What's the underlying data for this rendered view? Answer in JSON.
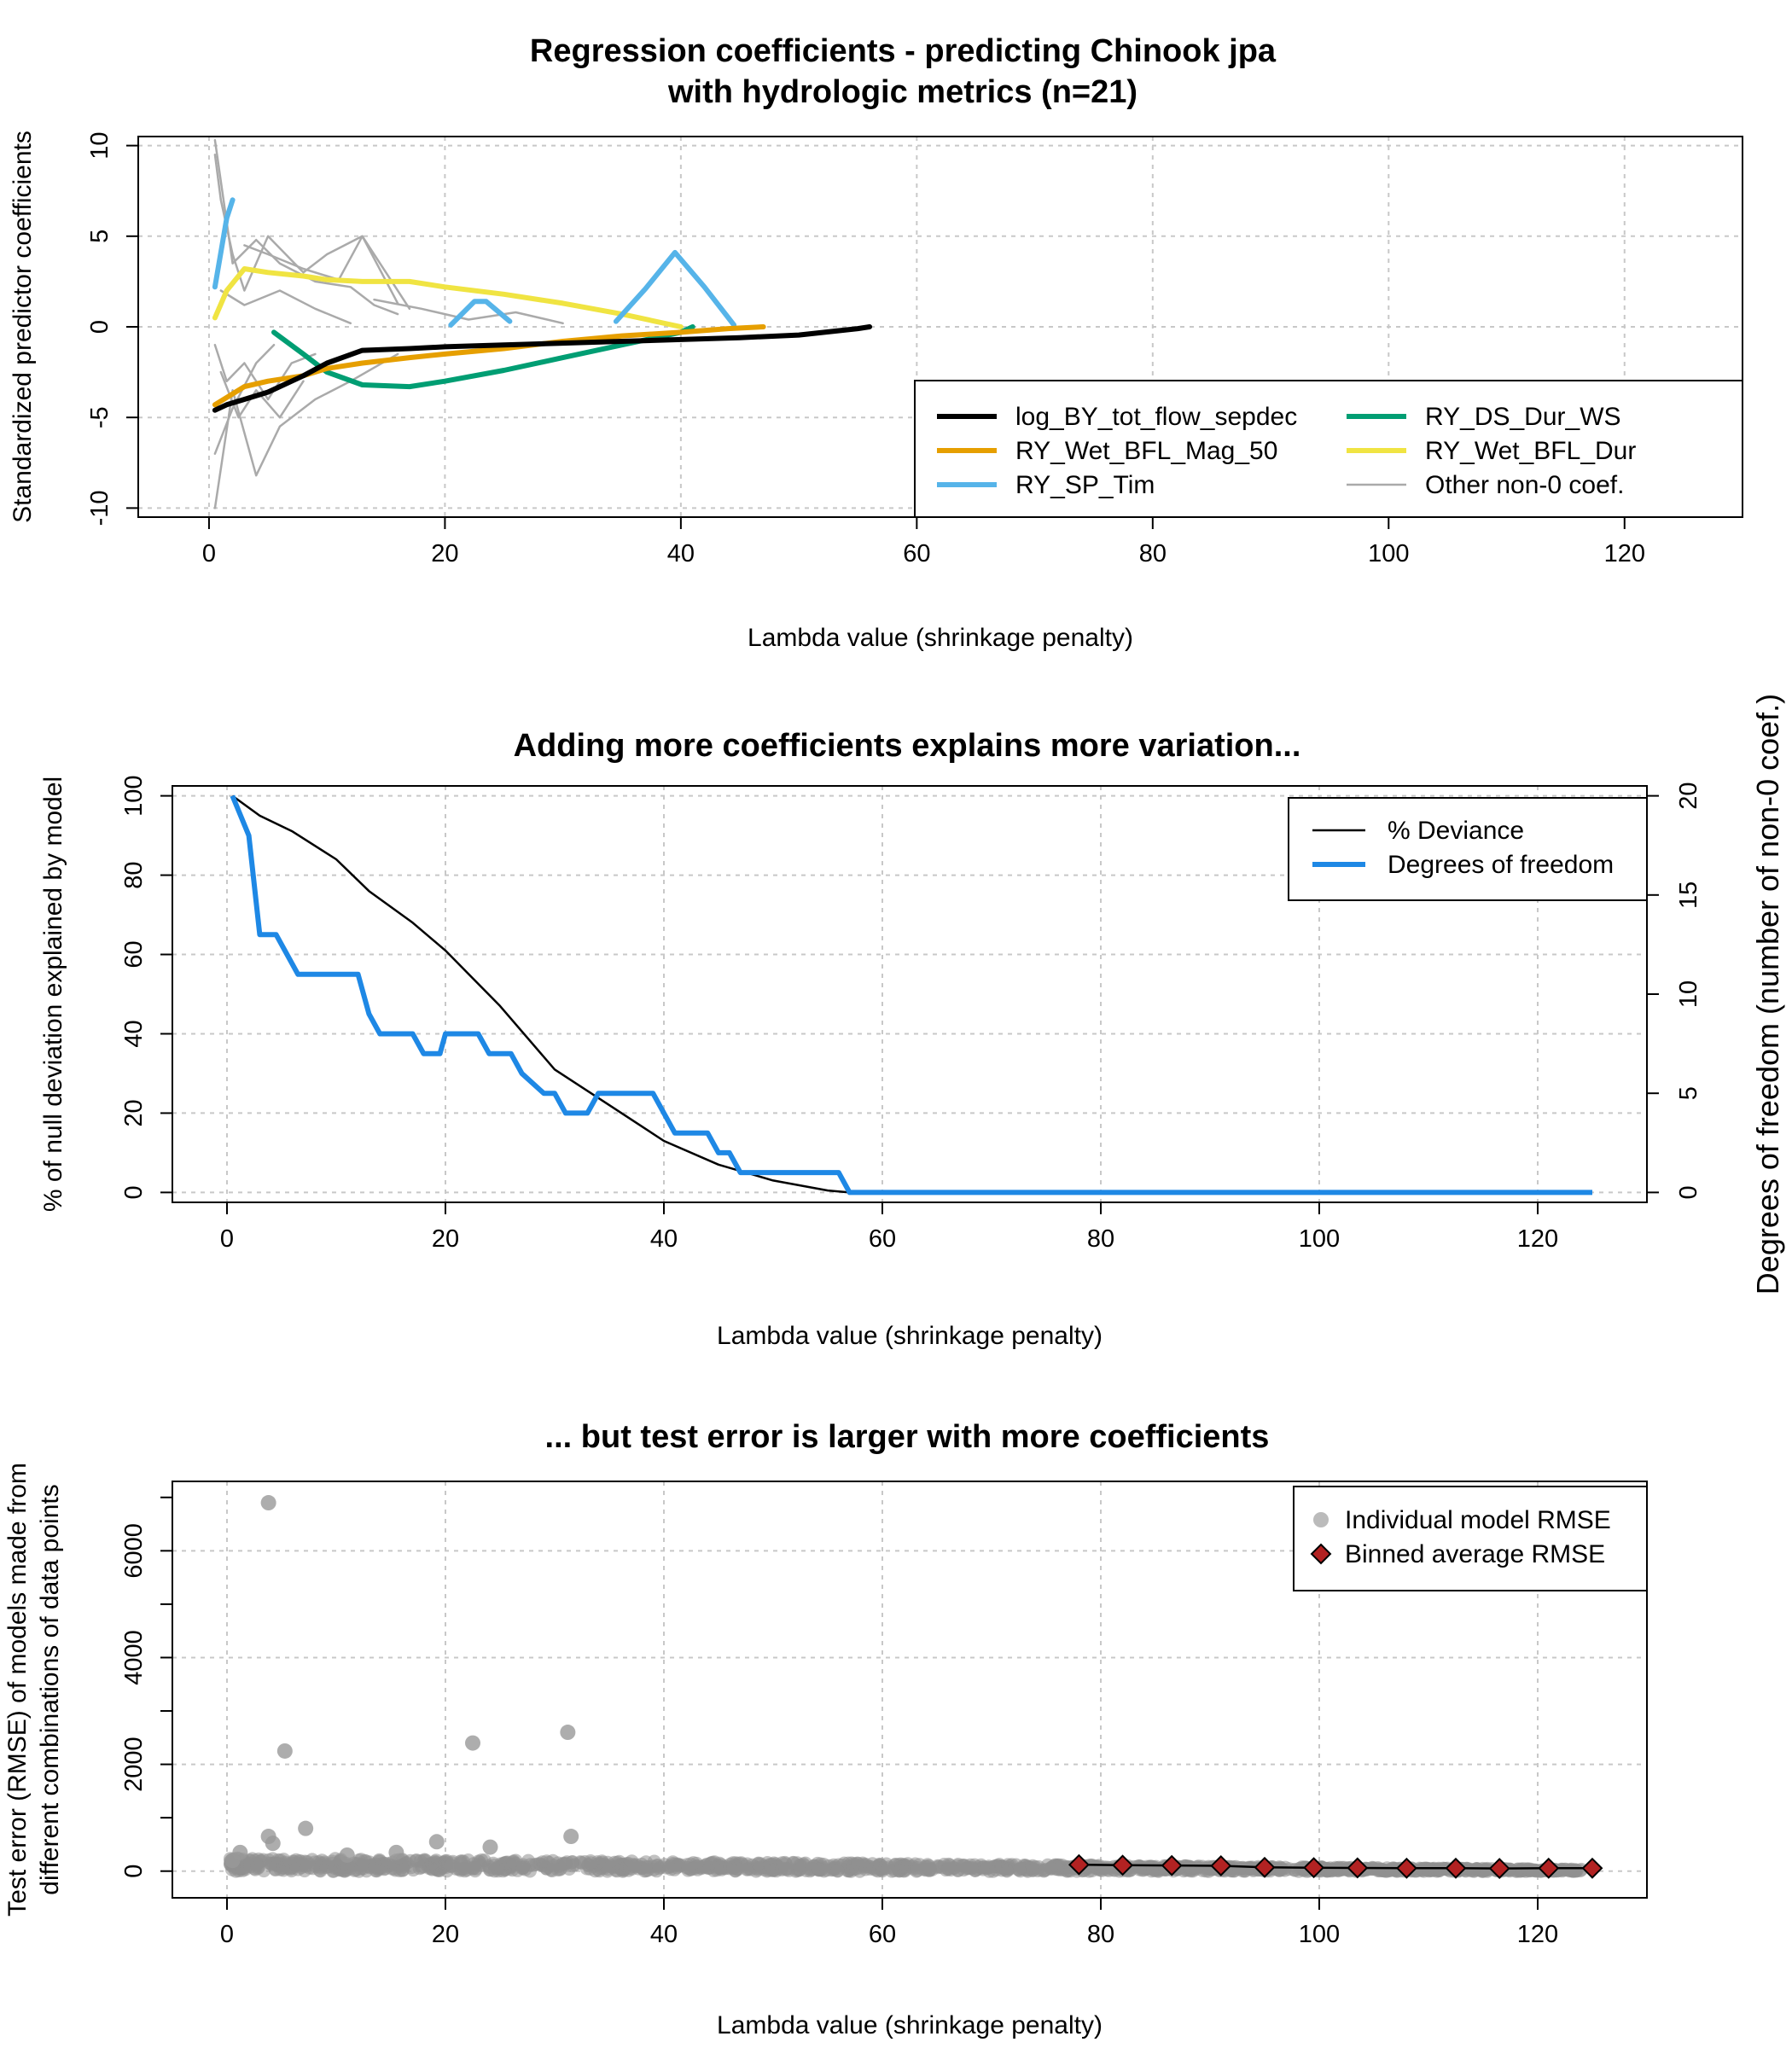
{
  "chart_data": [
    {
      "type": "line",
      "title": "Regression coefficients - predicting Chinook jpa",
      "subtitle": "with hydrologic metrics (n=21)",
      "xlabel": "Lambda value (shrinkage penalty)",
      "ylabel": "Standardized predictor coefficients",
      "xlim": [
        -6,
        130
      ],
      "ylim": [
        -10.5,
        10.5
      ],
      "xticks": [
        0,
        20,
        40,
        60,
        80,
        100,
        120
      ],
      "yticks": [
        -10,
        -5,
        0,
        5,
        10
      ],
      "grid": true,
      "legend_position": "right",
      "series": [
        {
          "name": "log_BY_tot_flow_sepdec",
          "color": "#000000",
          "x": [
            0.5,
            1.5,
            3,
            5,
            8,
            10,
            13,
            17,
            20,
            25,
            30,
            35,
            40,
            45,
            50,
            55,
            56
          ],
          "y": [
            -4.6,
            -4.3,
            -4.0,
            -3.6,
            -2.7,
            -2.0,
            -1.3,
            -1.2,
            -1.1,
            -1.0,
            -0.9,
            -0.8,
            -0.7,
            -0.6,
            -0.45,
            -0.1,
            0
          ]
        },
        {
          "name": "RY_Wet_BFL_Mag_50",
          "color": "#E69F00",
          "x": [
            0.5,
            3,
            5,
            8,
            10,
            13,
            17,
            20,
            25,
            30,
            35,
            40,
            44,
            47
          ],
          "y": [
            -4.3,
            -3.3,
            -3.0,
            -2.7,
            -2.3,
            -2.0,
            -1.7,
            -1.5,
            -1.2,
            -0.8,
            -0.5,
            -0.3,
            -0.1,
            0
          ]
        },
        {
          "name": "RY_SP_Tim",
          "color": "#56B4E9",
          "x": [
            0.5,
            1.5,
            2
          ],
          "y": [
            2.2,
            6.0,
            7.0
          ]
        },
        {
          "name": "RY_DS_Dur_WS",
          "color": "#009E73",
          "x": [
            5.5,
            8,
            10,
            13,
            17,
            20,
            25,
            30,
            35,
            40,
            41
          ],
          "y": [
            -0.3,
            -1.5,
            -2.5,
            -3.2,
            -3.3,
            -3.0,
            -2.4,
            -1.7,
            -1.0,
            -0.3,
            0
          ]
        },
        {
          "name": "RY_Wet_BFL_Dur",
          "color": "#F0E442",
          "x": [
            0.5,
            1.5,
            3,
            5,
            8,
            10,
            13,
            17,
            20,
            25,
            30,
            35,
            40
          ],
          "y": [
            0.5,
            2.0,
            3.2,
            3.0,
            2.8,
            2.6,
            2.5,
            2.5,
            2.2,
            1.8,
            1.3,
            0.7,
            0
          ]
        },
        {
          "name": "Other non-0 coef.",
          "color": "#aaaaaa",
          "x": [
            0.5,
            1,
            2,
            3,
            5,
            8,
            10,
            13,
            15,
            17
          ],
          "y": [
            9.5,
            7,
            4,
            2,
            5,
            3,
            4,
            5,
            3,
            1
          ]
        }
      ],
      "extra_segments": [
        {
          "series": "RY_SP_Tim",
          "x": [
            20.5,
            22.5,
            23.5,
            25.5
          ],
          "y": [
            0.1,
            1.4,
            1.4,
            0.3
          ]
        },
        {
          "series": "RY_SP_Tim",
          "x": [
            34.5,
            37,
            39.5,
            42,
            44.5
          ],
          "y": [
            0.3,
            2.1,
            4.1,
            2.2,
            0.1
          ]
        },
        {
          "series": "Other non-0 coef.",
          "x": [
            0.5,
            2,
            4,
            6,
            9,
            12,
            14,
            16
          ],
          "y": [
            10.3,
            3.5,
            4.8,
            3.5,
            2.5,
            2.2,
            1.2,
            0.7
          ]
        },
        {
          "series": "Other non-0 coef.",
          "x": [
            3,
            5,
            8,
            11,
            13,
            16
          ],
          "y": [
            4.5,
            4.0,
            3.2,
            2.6,
            5.0,
            1.3
          ]
        },
        {
          "series": "Other non-0 coef.",
          "x": [
            1,
            3,
            6,
            9,
            12
          ],
          "y": [
            2.0,
            1.2,
            2.0,
            1.0,
            0.2
          ]
        },
        {
          "series": "Other non-0 coef.",
          "x": [
            14,
            18,
            22,
            26,
            30
          ],
          "y": [
            1.5,
            1.0,
            0.4,
            0.8,
            0.2
          ]
        },
        {
          "series": "Other non-0 coef.",
          "x": [
            0.5,
            2,
            4,
            6,
            9,
            12,
            16
          ],
          "y": [
            -10.0,
            -3.5,
            -8.2,
            -5.5,
            -4.0,
            -3.0,
            -1.5
          ]
        },
        {
          "series": "Other non-0 coef.",
          "x": [
            0.5,
            1.5,
            3,
            5,
            7,
            9
          ],
          "y": [
            -1.0,
            -3.0,
            -2.0,
            -4.0,
            -2.0,
            -1.5
          ]
        },
        {
          "series": "Other non-0 coef.",
          "x": [
            1,
            2.5,
            4,
            6,
            8
          ],
          "y": [
            -2.5,
            -5.0,
            -3.5,
            -5.0,
            -3.0
          ]
        },
        {
          "series": "Other non-0 coef.",
          "x": [
            0.5,
            2,
            4,
            5.5
          ],
          "y": [
            -7.0,
            -4.5,
            -2.0,
            -1.0
          ]
        }
      ]
    },
    {
      "type": "line",
      "title": "Adding more coefficients explains more variation...",
      "xlabel": "Lambda value (shrinkage penalty)",
      "ylabel": "% of null deviation explained by model",
      "y2label": "Degrees of freedom (number of non-0 coef.)",
      "xlim": [
        -5,
        130
      ],
      "ylim": [
        -2.5,
        102.5
      ],
      "y2lim": [
        -0.5,
        20.5
      ],
      "xticks": [
        0,
        20,
        40,
        60,
        80,
        100,
        120
      ],
      "yticks": [
        0,
        20,
        40,
        60,
        80,
        100
      ],
      "y2ticks": [
        0,
        5,
        10,
        15,
        20
      ],
      "grid": true,
      "legend_position": "top-right",
      "series": [
        {
          "name": "% Deviance",
          "color": "#000000",
          "axis": "left",
          "x": [
            0.5,
            3,
            6,
            10,
            13,
            17,
            20,
            25,
            30,
            35,
            40,
            45,
            50,
            55,
            57
          ],
          "y": [
            100,
            95,
            91,
            84,
            76,
            68,
            61,
            47,
            31,
            22,
            13,
            7,
            3,
            0.5,
            0
          ]
        },
        {
          "name": "Degrees of freedom",
          "color": "#1E88E5",
          "axis": "right",
          "x": [
            0.5,
            2,
            3,
            4.5,
            6.5,
            12,
            13,
            14,
            17,
            18,
            19.5,
            20,
            23,
            24,
            26,
            27,
            29,
            30,
            31,
            33,
            34,
            35,
            39,
            40,
            41,
            42,
            44,
            45,
            46,
            47,
            48,
            55,
            56,
            57,
            125
          ],
          "y": [
            20,
            18,
            13,
            13,
            11,
            11,
            9,
            8,
            8,
            7,
            7,
            8,
            8,
            7,
            7,
            6,
            5,
            5,
            4,
            4,
            5,
            5,
            5,
            4,
            3,
            3,
            3,
            2,
            2,
            1,
            1,
            1,
            1,
            0,
            0
          ]
        }
      ]
    },
    {
      "type": "scatter",
      "title": "... but test error is larger with more coefficients",
      "xlabel": "Lambda value (shrinkage penalty)",
      "ylabel": "Test error (RMSE) of models made from",
      "ylabel2": "different combinations of data points",
      "xlim": [
        -5,
        130
      ],
      "ylim": [
        -500,
        7300
      ],
      "xticks": [
        0,
        20,
        40,
        60,
        80,
        100,
        120
      ],
      "yticks": [
        0,
        2000,
        4000,
        6000
      ],
      "minor_yticks": [
        1000,
        3000,
        5000,
        7000
      ],
      "grid": true,
      "legend_position": "top-right",
      "series": [
        {
          "name": "Individual model RMSE",
          "color": "#999999",
          "x": [
            3.8,
            5.3,
            22.5,
            31.2,
            3.8,
            7.2,
            4.2,
            19.2,
            24.1,
            31.5,
            11.0,
            15.5,
            1.2,
            0.5
          ],
          "y": [
            6900,
            2250,
            2400,
            2600,
            650,
            800,
            520,
            550,
            450,
            650,
            300,
            350,
            350,
            200
          ]
        },
        {
          "name": "Binned average RMSE",
          "color": "#B22222",
          "x": [
            78,
            82,
            86.5,
            91,
            95,
            99.5,
            103.5,
            108,
            112.5,
            116.5,
            121,
            125
          ],
          "y": [
            120,
            110,
            105,
            100,
            70,
            65,
            60,
            55,
            55,
            50,
            55,
            55
          ]
        }
      ],
      "dense_band": {
        "x_start": 0.3,
        "x_end": 124,
        "y_start": 250,
        "y_end": 30
      }
    }
  ]
}
